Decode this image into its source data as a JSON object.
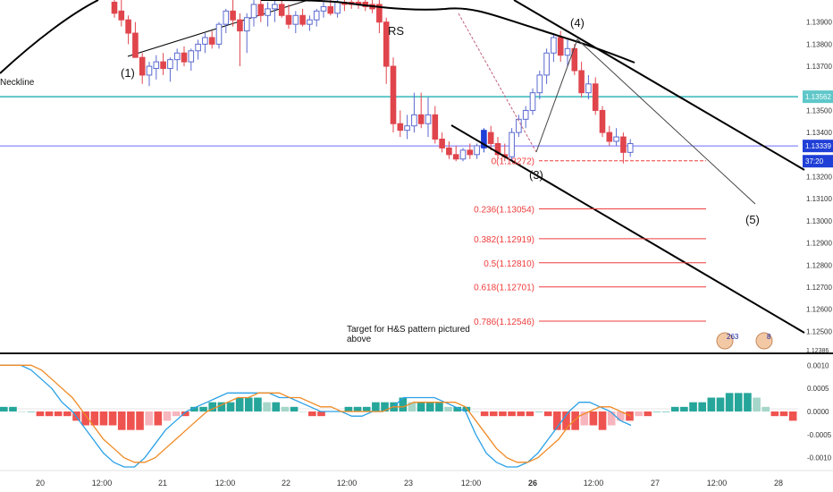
{
  "colors": {
    "bull": "#ffffff",
    "bull_border": "#5b6ad0",
    "bear": "#e0454c",
    "blue_candle": "#1f3fd6",
    "ma": "#000000",
    "cyan": "#5fc7c9",
    "price_line": "#6b6bff",
    "fib": "#ef3c3c",
    "hist_pos_dark": "#26a69a",
    "hist_pos_light": "#a5d6c9",
    "hist_neg_dark": "#ef5350",
    "hist_neg_light": "#f7b5bd",
    "macd": "#2aa0e6",
    "signal": "#f08a24",
    "axis_text": "#333333",
    "badge_blue": "#1020a0"
  },
  "chart_data": [
    {
      "type": "candlestick",
      "x": [
        "20",
        "12:00",
        "21",
        "12:00",
        "22",
        "12:00",
        "23",
        "12:00",
        "26",
        "12:00",
        "27",
        "12:00",
        "28"
      ],
      "ylim": [
        1.124,
        1.14
      ],
      "y_ticks": [
        "1.13900",
        "1.13800",
        "1.13700",
        "1.13500",
        "1.13400",
        "1.13200",
        "1.13100",
        "1.13000",
        "1.12900",
        "1.12800",
        "1.12700",
        "1.12600",
        "1.12500"
      ],
      "price_labels": [
        {
          "label": "1.13562",
          "value": 1.13562
        },
        {
          "label": "1.13339",
          "value": 1.13339
        },
        {
          "label": "37:20",
          "value": 1.1327
        }
      ],
      "bottom_price_label": "1.12386",
      "annotations": {
        "neckline": "Neckline",
        "rs": "RS",
        "wave1": "(1)",
        "wave3": "(3)",
        "wave4": "(4)",
        "wave5": "(5)",
        "target_line1": "Target for H&S pattern pictured",
        "target_line2": "above",
        "badge1": "263",
        "badge2": "8"
      },
      "fib_levels": [
        {
          "label": "0(1.13272)",
          "value": 1.13272
        },
        {
          "label": "0.236(1.13054)",
          "value": 1.13054
        },
        {
          "label": "0.382(1.12919)",
          "value": 1.12919
        },
        {
          "label": "0.5(1.12810)",
          "value": 1.1281
        },
        {
          "label": "0.618(1.12701)",
          "value": 1.12701
        },
        {
          "label": "0.786(1.12546)",
          "value": 1.12546
        }
      ],
      "horizontal_levels": {
        "neckline": 1.13562,
        "current_price": 1.13339
      },
      "candles": [
        {
          "t": 0,
          "o": 1.1399,
          "h": 1.14,
          "l": 1.1392,
          "c": 1.1394
        },
        {
          "t": 1,
          "o": 1.1395,
          "h": 1.14,
          "l": 1.1388,
          "c": 1.1391
        },
        {
          "t": 2,
          "o": 1.1391,
          "h": 1.1393,
          "l": 1.138,
          "c": 1.1385
        },
        {
          "t": 3,
          "o": 1.1385,
          "h": 1.139,
          "l": 1.1375,
          "c": 1.1374
        },
        {
          "t": 4,
          "o": 1.1374,
          "h": 1.1376,
          "l": 1.1362,
          "c": 1.1366
        },
        {
          "t": 5,
          "o": 1.1366,
          "h": 1.1372,
          "l": 1.1361,
          "c": 1.137
        },
        {
          "t": 6,
          "o": 1.1369,
          "h": 1.1375,
          "l": 1.1364,
          "c": 1.1372
        },
        {
          "t": 7,
          "o": 1.1372,
          "h": 1.1376,
          "l": 1.1366,
          "c": 1.1369
        },
        {
          "t": 8,
          "o": 1.1369,
          "h": 1.1374,
          "l": 1.1363,
          "c": 1.1373
        },
        {
          "t": 9,
          "o": 1.1373,
          "h": 1.1378,
          "l": 1.1368,
          "c": 1.1376
        },
        {
          "t": 10,
          "o": 1.1376,
          "h": 1.1379,
          "l": 1.137,
          "c": 1.1372
        },
        {
          "t": 11,
          "o": 1.1372,
          "h": 1.1378,
          "l": 1.1368,
          "c": 1.1377
        },
        {
          "t": 12,
          "o": 1.1377,
          "h": 1.1382,
          "l": 1.1373,
          "c": 1.138
        },
        {
          "t": 13,
          "o": 1.138,
          "h": 1.1385,
          "l": 1.1376,
          "c": 1.1383
        },
        {
          "t": 14,
          "o": 1.1383,
          "h": 1.1386,
          "l": 1.1378,
          "c": 1.138
        },
        {
          "t": 15,
          "o": 1.138,
          "h": 1.139,
          "l": 1.1378,
          "c": 1.1389
        },
        {
          "t": 16,
          "o": 1.1389,
          "h": 1.1396,
          "l": 1.1385,
          "c": 1.1395
        },
        {
          "t": 17,
          "o": 1.1395,
          "h": 1.14,
          "l": 1.1388,
          "c": 1.1391
        },
        {
          "t": 18,
          "o": 1.1391,
          "h": 1.1394,
          "l": 1.137,
          "c": 1.1386
        },
        {
          "t": 19,
          "o": 1.1386,
          "h": 1.1394,
          "l": 1.1376,
          "c": 1.1392
        },
        {
          "t": 20,
          "o": 1.1392,
          "h": 1.14,
          "l": 1.1388,
          "c": 1.1398
        },
        {
          "t": 21,
          "o": 1.1398,
          "h": 1.14,
          "l": 1.139,
          "c": 1.1393
        },
        {
          "t": 22,
          "o": 1.1393,
          "h": 1.1399,
          "l": 1.1388,
          "c": 1.1396
        },
        {
          "t": 23,
          "o": 1.1396,
          "h": 1.14,
          "l": 1.139,
          "c": 1.1398
        },
        {
          "t": 24,
          "o": 1.1398,
          "h": 1.14,
          "l": 1.1392,
          "c": 1.1393
        },
        {
          "t": 25,
          "o": 1.1393,
          "h": 1.1398,
          "l": 1.1387,
          "c": 1.1389
        },
        {
          "t": 26,
          "o": 1.1389,
          "h": 1.1395,
          "l": 1.1385,
          "c": 1.1393
        },
        {
          "t": 27,
          "o": 1.1393,
          "h": 1.1396,
          "l": 1.1388,
          "c": 1.1389
        },
        {
          "t": 28,
          "o": 1.1389,
          "h": 1.1393,
          "l": 1.1386,
          "c": 1.1391
        },
        {
          "t": 29,
          "o": 1.1391,
          "h": 1.1396,
          "l": 1.1388,
          "c": 1.1395
        },
        {
          "t": 30,
          "o": 1.1395,
          "h": 1.1399,
          "l": 1.1392,
          "c": 1.1397
        },
        {
          "t": 31,
          "o": 1.1397,
          "h": 1.14,
          "l": 1.1393,
          "c": 1.1394
        },
        {
          "t": 32,
          "o": 1.1394,
          "h": 1.14,
          "l": 1.1392,
          "c": 1.1399
        },
        {
          "t": 33,
          "o": 1.1399,
          "h": 1.14,
          "l": 1.1395,
          "c": 1.1398
        },
        {
          "t": 34,
          "o": 1.1399,
          "h": 1.14,
          "l": 1.1396,
          "c": 1.1398
        },
        {
          "t": 35,
          "o": 1.1399,
          "h": 1.14,
          "l": 1.1396,
          "c": 1.1398
        },
        {
          "t": 36,
          "o": 1.1399,
          "h": 1.14,
          "l": 1.1395,
          "c": 1.1397
        },
        {
          "t": 37,
          "o": 1.1398,
          "h": 1.14,
          "l": 1.1394,
          "c": 1.1396
        },
        {
          "t": 38,
          "o": 1.1398,
          "h": 1.14,
          "l": 1.1385,
          "c": 1.139
        },
        {
          "t": 39,
          "o": 1.139,
          "h": 1.1392,
          "l": 1.1362,
          "c": 1.137
        },
        {
          "t": 40,
          "o": 1.137,
          "h": 1.1374,
          "l": 1.134,
          "c": 1.1344
        },
        {
          "t": 41,
          "o": 1.1344,
          "h": 1.135,
          "l": 1.1338,
          "c": 1.1341
        },
        {
          "t": 42,
          "o": 1.1341,
          "h": 1.1348,
          "l": 1.1337,
          "c": 1.1343
        },
        {
          "t": 43,
          "o": 1.1343,
          "h": 1.1358,
          "l": 1.134,
          "c": 1.1348
        },
        {
          "t": 44,
          "o": 1.1348,
          "h": 1.1358,
          "l": 1.1342,
          "c": 1.1344
        },
        {
          "t": 45,
          "o": 1.1344,
          "h": 1.1356,
          "l": 1.1338,
          "c": 1.1348
        },
        {
          "t": 46,
          "o": 1.1348,
          "h": 1.1352,
          "l": 1.1335,
          "c": 1.1337
        },
        {
          "t": 47,
          "o": 1.1337,
          "h": 1.134,
          "l": 1.1331,
          "c": 1.1333
        },
        {
          "t": 48,
          "o": 1.1333,
          "h": 1.1336,
          "l": 1.1328,
          "c": 1.133
        },
        {
          "t": 49,
          "o": 1.133,
          "h": 1.1334,
          "l": 1.1327,
          "c": 1.1328
        },
        {
          "t": 50,
          "o": 1.1328,
          "h": 1.1333,
          "l": 1.1327,
          "c": 1.1332
        },
        {
          "t": 51,
          "o": 1.1332,
          "h": 1.1335,
          "l": 1.1328,
          "c": 1.133
        },
        {
          "t": 52,
          "o": 1.133,
          "h": 1.1335,
          "l": 1.1328,
          "c": 1.1334
        },
        {
          "t": 53,
          "o": 1.1333,
          "h": 1.1342,
          "l": 1.1331,
          "c": 1.1341
        },
        {
          "t": 54,
          "o": 1.134,
          "h": 1.1343,
          "l": 1.1332,
          "c": 1.1335
        },
        {
          "t": 55,
          "o": 1.1335,
          "h": 1.1338,
          "l": 1.1328,
          "c": 1.133
        },
        {
          "t": 56,
          "o": 1.133,
          "h": 1.1335,
          "l": 1.1327,
          "c": 1.1329
        },
        {
          "t": 57,
          "o": 1.1329,
          "h": 1.1342,
          "l": 1.1327,
          "c": 1.134
        },
        {
          "t": 58,
          "o": 1.134,
          "h": 1.1348,
          "l": 1.1338,
          "c": 1.1346
        },
        {
          "t": 59,
          "o": 1.1346,
          "h": 1.1352,
          "l": 1.1342,
          "c": 1.135
        },
        {
          "t": 60,
          "o": 1.135,
          "h": 1.136,
          "l": 1.1348,
          "c": 1.1358
        },
        {
          "t": 61,
          "o": 1.1358,
          "h": 1.1368,
          "l": 1.1355,
          "c": 1.1366
        },
        {
          "t": 62,
          "o": 1.1366,
          "h": 1.1378,
          "l": 1.1362,
          "c": 1.1376
        },
        {
          "t": 63,
          "o": 1.1376,
          "h": 1.1385,
          "l": 1.1372,
          "c": 1.1383
        },
        {
          "t": 64,
          "o": 1.1383,
          "h": 1.1386,
          "l": 1.1372,
          "c": 1.1375
        },
        {
          "t": 65,
          "o": 1.1375,
          "h": 1.1382,
          "l": 1.137,
          "c": 1.1378
        },
        {
          "t": 66,
          "o": 1.1378,
          "h": 1.138,
          "l": 1.1366,
          "c": 1.1368
        },
        {
          "t": 67,
          "o": 1.1368,
          "h": 1.1372,
          "l": 1.1356,
          "c": 1.1358
        },
        {
          "t": 68,
          "o": 1.1358,
          "h": 1.1366,
          "l": 1.1355,
          "c": 1.1362
        },
        {
          "t": 69,
          "o": 1.1362,
          "h": 1.1365,
          "l": 1.1348,
          "c": 1.135
        },
        {
          "t": 70,
          "o": 1.135,
          "h": 1.1352,
          "l": 1.1338,
          "c": 1.134
        },
        {
          "t": 71,
          "o": 1.134,
          "h": 1.1343,
          "l": 1.1334,
          "c": 1.1336
        },
        {
          "t": 72,
          "o": 1.1336,
          "h": 1.1342,
          "l": 1.1334,
          "c": 1.1338
        },
        {
          "t": 73,
          "o": 1.1338,
          "h": 1.134,
          "l": 1.1326,
          "c": 1.1331
        },
        {
          "t": 74,
          "o": 1.1331,
          "h": 1.1337,
          "l": 1.1329,
          "c": 1.1335
        }
      ]
    },
    {
      "type": "bar",
      "ylim": [
        -0.0012,
        0.0012
      ],
      "y_ticks": [
        "0.0010",
        "0.0005",
        "0.0000",
        "-0.0005",
        "-0.0010"
      ],
      "hist_values": [
        0.0001,
        0.0001,
        0.0,
        0.0,
        -0.0001,
        -0.0001,
        -0.0001,
        -0.0001,
        -0.0002,
        -0.0003,
        -0.0003,
        -0.0003,
        -0.0003,
        -0.0004,
        -0.0004,
        -0.0004,
        -0.0003,
        -0.0003,
        -0.0002,
        -0.0001,
        -0.0001,
        0.0001,
        0.0001,
        0.0002,
        0.0002,
        0.0002,
        0.0003,
        0.0003,
        0.0003,
        0.0002,
        0.0002,
        0.0001,
        0.0001,
        0.0,
        -0.0001,
        -0.0001,
        0.0,
        0.0,
        0.0001,
        0.0001,
        0.0001,
        0.0002,
        0.0002,
        0.0002,
        0.0003,
        0.0002,
        0.0002,
        0.0002,
        0.0002,
        0.0001,
        0.0001,
        0.0001,
        0.0,
        -0.0001,
        -0.0001,
        -0.0001,
        -0.0001,
        -0.0001,
        -0.0001,
        0.0,
        -0.0001,
        -0.0004,
        -0.0004,
        -0.0004,
        -0.0003,
        -0.0003,
        -0.0004,
        -0.0003,
        -0.0002,
        -0.0002,
        -0.0001,
        -0.0001,
        0.0,
        0.0,
        0.0001,
        0.0001,
        0.0002,
        0.0002,
        0.0003,
        0.0003,
        0.0004,
        0.0004,
        0.0004,
        0.0003,
        0.0001,
        -0.0001,
        -0.0001,
        -0.0002
      ],
      "macd": [
        0.001,
        0.001,
        0.001,
        0.0009,
        0.0007,
        0.0005,
        0.0002,
        0.0,
        -0.0003,
        -0.0006,
        -0.0009,
        -0.0011,
        -0.0012,
        -0.0012,
        -0.001,
        -0.0007,
        -0.0004,
        -0.0002,
        0.0,
        0.0001,
        0.0002,
        0.0003,
        0.0004,
        0.0004,
        0.0004,
        0.0004,
        0.0004,
        0.0003,
        0.0003,
        0.0002,
        0.0001,
        0.0,
        0.0,
        0.0,
        -0.0001,
        -0.0001,
        0.0,
        0.0,
        0.0001,
        0.0003,
        0.0003,
        0.0003,
        0.0003,
        0.0002,
        0.0001,
        0.0,
        -0.0005,
        -0.0009,
        -0.0011,
        -0.0012,
        -0.0012,
        -0.0011,
        -0.0009,
        -0.0006,
        -0.0003,
        0.0,
        0.0002,
        0.0002,
        0.0001,
        0.0,
        -0.0002,
        -0.0003
      ],
      "signal": [
        0.001,
        0.001,
        0.001,
        0.001,
        0.0009,
        0.0007,
        0.0005,
        0.0003,
        0.0,
        -0.0003,
        -0.0006,
        -0.0008,
        -0.001,
        -0.0011,
        -0.0011,
        -0.001,
        -0.0008,
        -0.0006,
        -0.0004,
        -0.0002,
        0.0,
        0.0001,
        0.0002,
        0.0003,
        0.0003,
        0.0004,
        0.0004,
        0.0004,
        0.0003,
        0.0003,
        0.0002,
        0.0001,
        0.0001,
        0.0,
        0.0,
        0.0,
        0.0,
        0.0,
        0.0001,
        0.0001,
        0.0002,
        0.0002,
        0.0002,
        0.0002,
        0.0002,
        0.0001,
        -0.0002,
        -0.0005,
        -0.0008,
        -0.001,
        -0.0011,
        -0.0011,
        -0.001,
        -0.0008,
        -0.0006,
        -0.0003,
        -0.0001,
        0.0,
        0.0001,
        0.0001,
        0.0,
        -0.0001
      ]
    }
  ]
}
